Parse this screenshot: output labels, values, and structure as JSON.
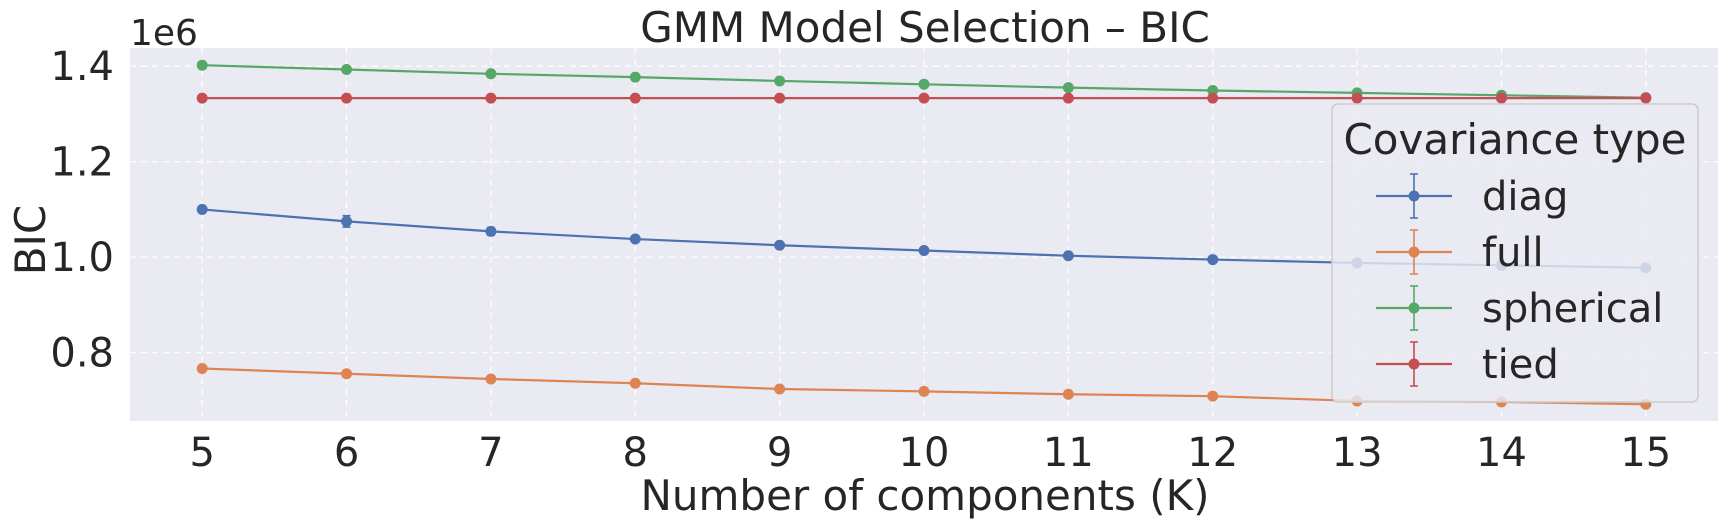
{
  "chart_data": {
    "type": "line",
    "title": "GMM Model Selection – BIC",
    "xlabel": "Number of components (K)",
    "ylabel": "BIC",
    "y_offset_label": "1e6",
    "x": [
      5,
      6,
      7,
      8,
      9,
      10,
      11,
      12,
      13,
      14,
      15
    ],
    "x_tick_labels": [
      "5",
      "6",
      "7",
      "8",
      "9",
      "10",
      "11",
      "12",
      "13",
      "14",
      "15"
    ],
    "y_ticks": [
      0.8,
      1.0,
      1.2,
      1.4
    ],
    "y_tick_labels": [
      "0.8",
      "1.0",
      "1.2",
      "1.4"
    ],
    "xlim": [
      4.5,
      15.5
    ],
    "ylim": [
      0.657,
      1.438
    ],
    "grid": true,
    "legend": {
      "title": "Covariance type",
      "placement": "right"
    },
    "series": [
      {
        "name": "diag",
        "color": "#4c72b0",
        "values": [
          1.1,
          1.075,
          1.054,
          1.038,
          1.025,
          1.014,
          1.003,
          0.995,
          0.988,
          0.983,
          0.978
        ],
        "errors": [
          0.004,
          0.012,
          0.008,
          0.004,
          0.003,
          0.003,
          0.002,
          0.002,
          0.002,
          0.002,
          0.002
        ]
      },
      {
        "name": "full",
        "color": "#dd8452",
        "values": [
          0.767,
          0.756,
          0.745,
          0.736,
          0.724,
          0.719,
          0.713,
          0.709,
          0.699,
          0.697,
          0.692
        ],
        "errors": [
          0.002,
          0.002,
          0.002,
          0.002,
          0.002,
          0.003,
          0.002,
          0.002,
          0.002,
          0.002,
          0.002
        ]
      },
      {
        "name": "spherical",
        "color": "#55a868",
        "values": [
          1.402,
          1.393,
          1.384,
          1.377,
          1.369,
          1.362,
          1.355,
          1.349,
          1.344,
          1.339,
          1.334
        ],
        "errors": [
          0.001,
          0.001,
          0.001,
          0.001,
          0.001,
          0.001,
          0.001,
          0.001,
          0.001,
          0.001,
          0.001
        ]
      },
      {
        "name": "tied",
        "color": "#c44e52",
        "values": [
          1.333,
          1.333,
          1.333,
          1.333,
          1.333,
          1.333,
          1.333,
          1.333,
          1.333,
          1.333,
          1.333
        ],
        "errors": [
          0.001,
          0.001,
          0.001,
          0.001,
          0.001,
          0.001,
          0.001,
          0.001,
          0.001,
          0.001,
          0.001
        ]
      }
    ],
    "colors": {
      "plot_background": "#eaeaf2",
      "grid": "#ffffff",
      "text": "#262626"
    }
  }
}
